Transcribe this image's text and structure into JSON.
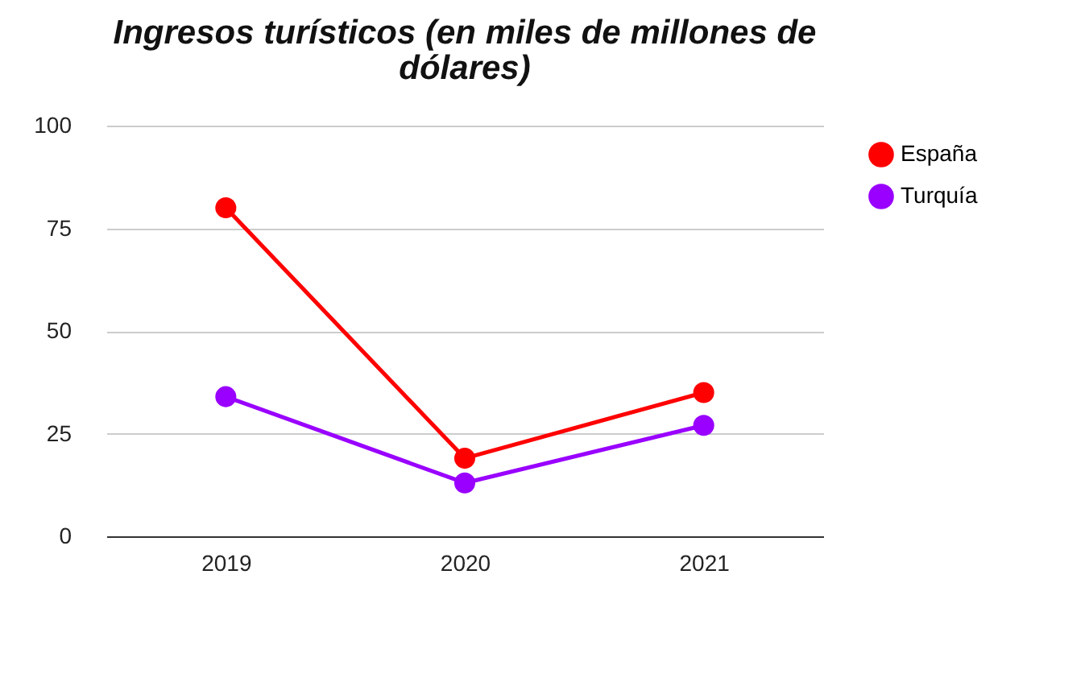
{
  "chart_data": {
    "type": "line",
    "title": "Ingresos turísticos (en miles de millones de dólares)",
    "categories": [
      "2019",
      "2020",
      "2021"
    ],
    "series": [
      {
        "name": "España",
        "color": "#ff0000",
        "values": [
          80,
          19,
          35
        ]
      },
      {
        "name": "Turquía",
        "color": "#9900ff",
        "values": [
          34,
          13,
          27
        ]
      }
    ],
    "ylim": [
      0,
      100
    ],
    "yticks": [
      0,
      25,
      50,
      75,
      100
    ],
    "grid": "y",
    "legend": "top right",
    "marker": "circle",
    "line_style": "solid"
  }
}
